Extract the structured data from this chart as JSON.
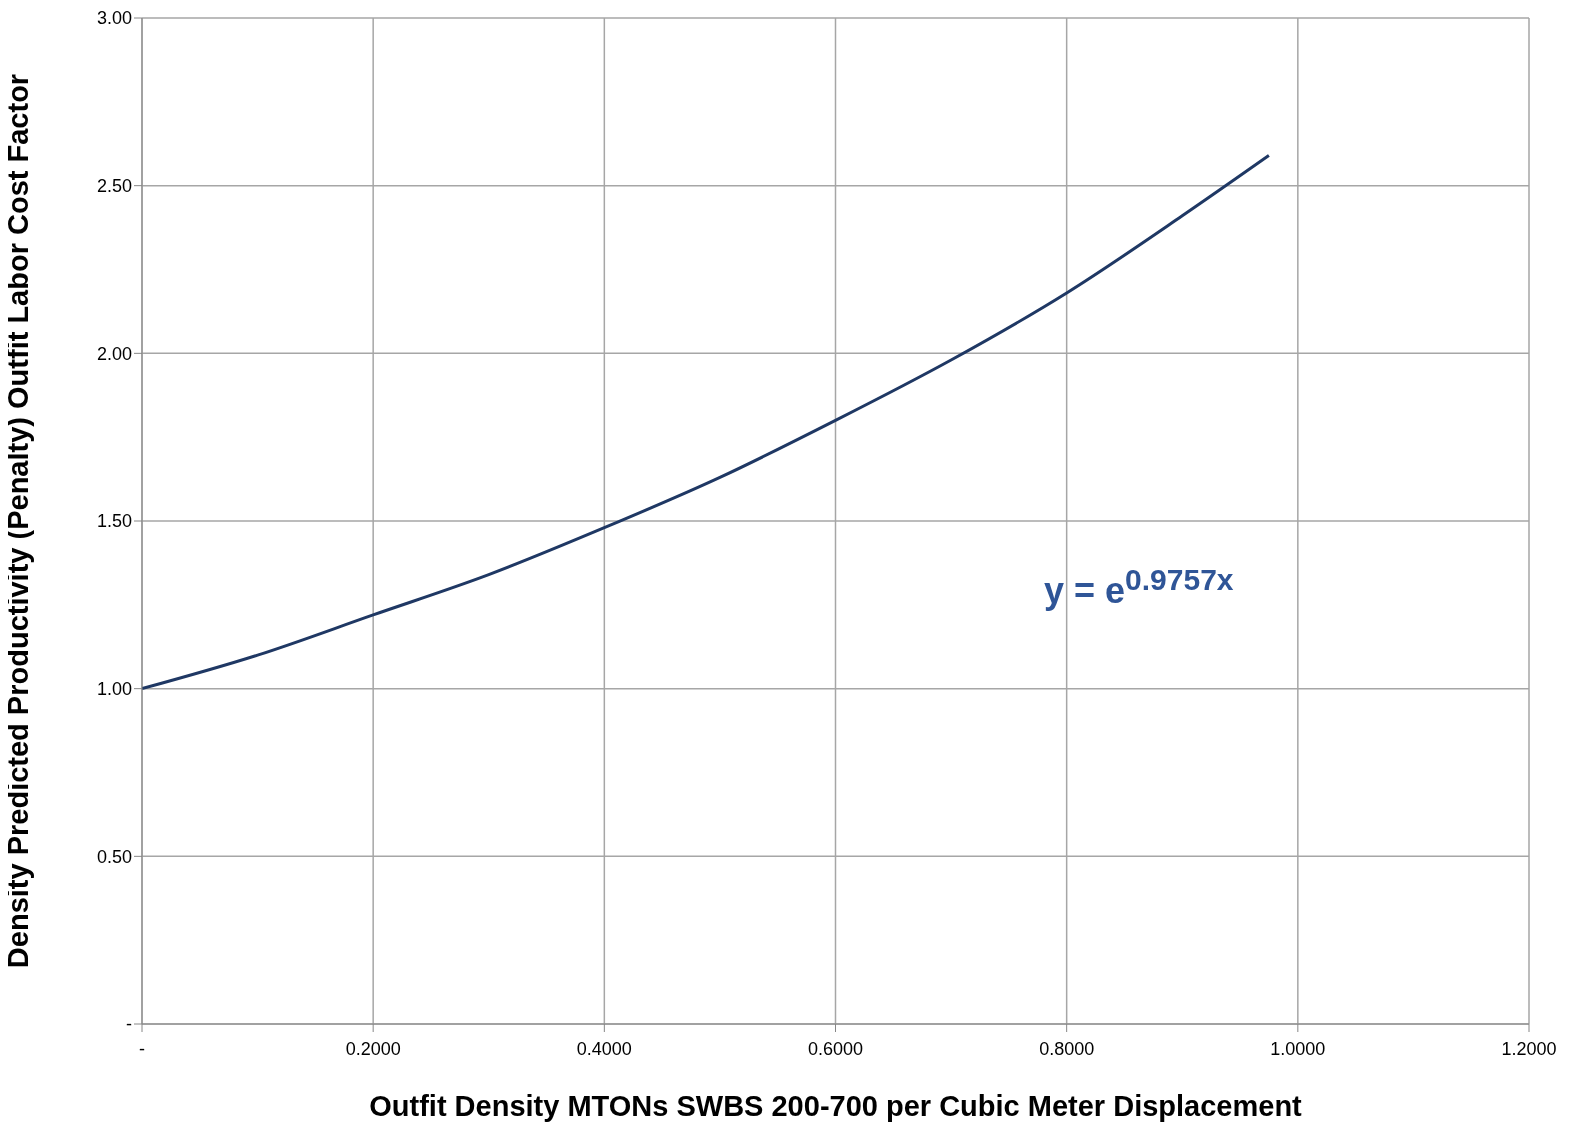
{
  "chart_data": {
    "type": "line",
    "xlabel": "Outfit Density MTONs SWBS 200-700 per Cubic Meter Displacement",
    "ylabel": "Density Predicted Productivity (Penalty) Outfit Labor Cost Factor",
    "annotations": [
      "y = e$^{0.9757x}$"
    ],
    "x": [
      0,
      0.1,
      0.2,
      0.3,
      0.4,
      0.5,
      0.6,
      0.7,
      0.8,
      0.9,
      0.975
    ],
    "series": [
      {
        "color": "#1f3864",
        "values": [
          1.0,
          1.1,
          1.22,
          1.34,
          1.48,
          1.63,
          1.8,
          1.98,
          2.18,
          2.41,
          2.59
        ]
      }
    ],
    "xlim": [
      0,
      1.2
    ],
    "xticks": [
      {
        "value": 0,
        "label": "-"
      },
      {
        "value": 0.2,
        "label": "0.2000"
      },
      {
        "value": 0.4,
        "label": "0.4000"
      },
      {
        "value": 0.6,
        "label": "0.6000"
      },
      {
        "value": 0.8,
        "label": "0.8000"
      },
      {
        "value": 1.0,
        "label": "1.0000"
      },
      {
        "value": 1.2,
        "label": "1.2000"
      }
    ],
    "ylim": [
      0,
      3
    ],
    "yticks": [
      {
        "value": 0,
        "label": "-"
      },
      {
        "value": 0.5,
        "label": "0.50"
      },
      {
        "value": 1,
        "label": "1.00"
      },
      {
        "value": 1.5,
        "label": "1.50"
      },
      {
        "value": 2,
        "label": "2.00"
      },
      {
        "value": 2.5,
        "label": "2.50"
      },
      {
        "value": 3,
        "label": "3.00"
      }
    ],
    "grid": true,
    "marker": "none",
    "line_style": "solid",
    "legend": false
  }
}
